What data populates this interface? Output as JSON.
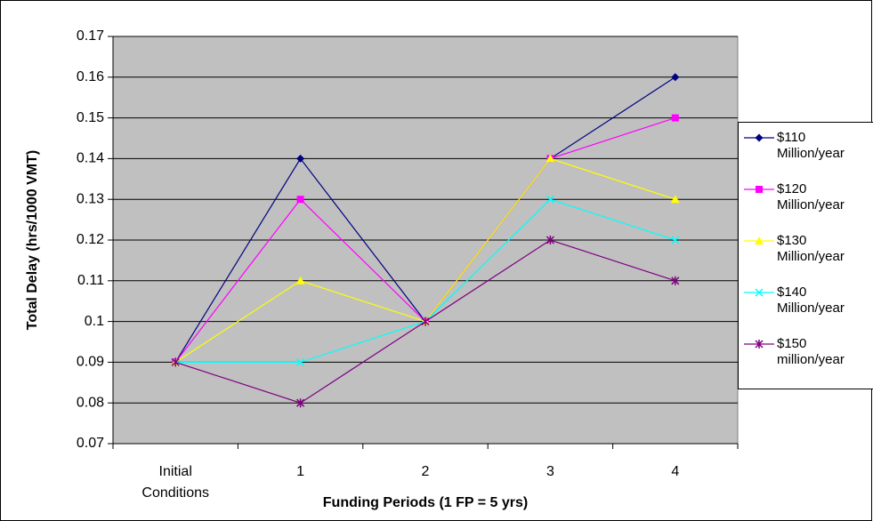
{
  "chart_data": {
    "type": "line",
    "xlabel": "Funding Periods (1 FP = 5 yrs)",
    "ylabel": "Total Delay (hrs/1000 VMT)",
    "categories": [
      "Initial Conditions",
      "1",
      "2",
      "3",
      "4"
    ],
    "series": [
      {
        "name": "$110 Million/year",
        "color": "#000080",
        "marker": "diamond",
        "values": [
          0.09,
          0.14,
          0.1,
          0.14,
          0.16
        ]
      },
      {
        "name": "$120 Million/year",
        "color": "#ff00ff",
        "marker": "square",
        "values": [
          0.09,
          0.13,
          0.1,
          0.14,
          0.15
        ]
      },
      {
        "name": "$130 Million/year",
        "color": "#ffff00",
        "marker": "triangle",
        "values": [
          0.09,
          0.11,
          0.1,
          0.14,
          0.13
        ]
      },
      {
        "name": "$140 Million/year",
        "color": "#00ffff",
        "marker": "x",
        "values": [
          0.09,
          0.09,
          0.1,
          0.13,
          0.12
        ]
      },
      {
        "name": "$150 million/year",
        "color": "#800080",
        "marker": "star",
        "values": [
          0.09,
          0.08,
          0.1,
          0.12,
          0.11
        ]
      }
    ],
    "ylim": [
      0.07,
      0.17
    ],
    "yticks": [
      0.07,
      0.08,
      0.09,
      0.1,
      0.11,
      0.12,
      0.13,
      0.14,
      0.15,
      0.16,
      0.17
    ],
    "grid": true,
    "plot_background": "#c0c0c0",
    "legend": "right"
  }
}
